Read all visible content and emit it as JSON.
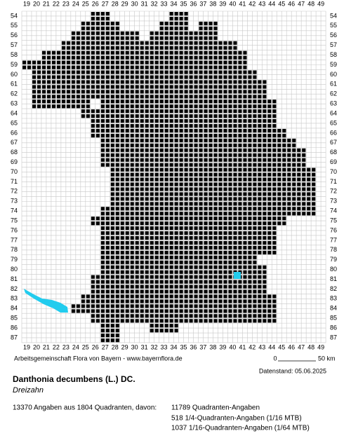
{
  "map": {
    "columns": [
      19,
      20,
      21,
      22,
      23,
      24,
      25,
      26,
      27,
      28,
      29,
      30,
      31,
      32,
      33,
      34,
      35,
      36,
      37,
      38,
      39,
      40,
      41,
      42,
      43,
      44,
      45,
      46,
      47,
      48,
      49
    ],
    "rows": [
      54,
      55,
      56,
      57,
      58,
      59,
      60,
      61,
      62,
      63,
      64,
      65,
      66,
      67,
      68,
      69,
      70,
      71,
      72,
      73,
      74,
      75,
      76,
      77,
      78,
      79,
      80,
      81,
      82,
      83,
      84,
      85,
      86,
      87
    ],
    "occupied": [
      [
        [
          26,
          27
        ],
        [
          34,
          35
        ]
      ],
      [
        [
          25,
          28
        ],
        [
          33,
          35
        ],
        [
          37,
          38
        ]
      ],
      [
        [
          24,
          30
        ],
        [
          32,
          38
        ]
      ],
      [
        [
          23,
          40
        ]
      ],
      [
        [
          21,
          41
        ]
      ],
      [
        [
          19,
          41
        ]
      ],
      [
        [
          20,
          42
        ]
      ],
      [
        [
          20,
          43
        ]
      ],
      [
        [
          20,
          43
        ]
      ],
      [
        [
          20,
          25
        ],
        [
          27,
          44
        ]
      ],
      [
        [
          25,
          44
        ]
      ],
      [
        [
          26,
          44
        ]
      ],
      [
        [
          26,
          45
        ]
      ],
      [
        [
          27,
          46
        ]
      ],
      [
        [
          27,
          47
        ]
      ],
      [
        [
          27,
          47
        ]
      ],
      [
        [
          28,
          48
        ]
      ],
      [
        [
          28,
          48
        ]
      ],
      [
        [
          28,
          48
        ]
      ],
      [
        [
          28,
          48
        ]
      ],
      [
        [
          27,
          48
        ]
      ],
      [
        [
          26,
          45
        ]
      ],
      [
        [
          27,
          44
        ]
      ],
      [
        [
          27,
          44
        ]
      ],
      [
        [
          27,
          44
        ]
      ],
      [
        [
          27,
          42
        ]
      ],
      [
        [
          27,
          43
        ]
      ],
      [
        [
          26,
          43
        ]
      ],
      [
        [
          26,
          43
        ]
      ],
      [
        [
          25,
          44
        ]
      ],
      [
        [
          24,
          44
        ]
      ],
      [
        [
          26,
          44
        ]
      ],
      [
        [
          27,
          28
        ],
        [
          32,
          34
        ]
      ],
      [
        [
          27,
          28
        ]
      ]
    ]
  },
  "footer": {
    "credit": "Arbeitsgemeinschaft Flora von Bayern - www.bayernflora.de",
    "scale_start": "0",
    "scale_end": "50 km",
    "date": "Datenstand: 05.06.2025"
  },
  "species": {
    "name": "Danthonia decumbens (L.) DC.",
    "common_name": "Dreizahn"
  },
  "stats": {
    "summary": "13370 Angaben aus 1804 Quadranten, davon:",
    "lines": [
      "11789 Quadranten-Angaben",
      "518 1/4-Quadranten-Angaben (1/16 MTB)",
      "1037 1/16-Quadranten-Angaben (1/64 MTB)"
    ]
  }
}
